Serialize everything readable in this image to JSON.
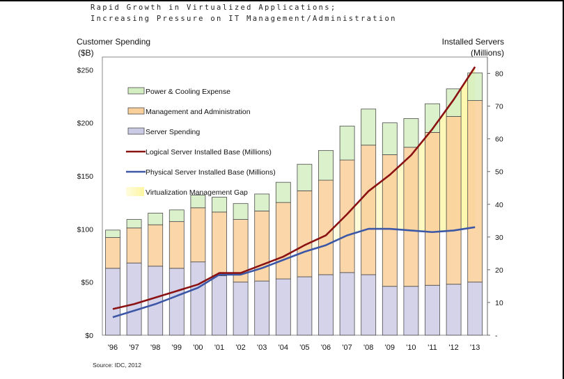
{
  "title": {
    "line1": "Rapid Growth in Virtualized Applications;",
    "line2": "Increasing Pressure on IT Management/Administration"
  },
  "source": "Source: IDC, 2012",
  "colors": {
    "server_spending": "#cccbe6",
    "management": "#f9cf9a",
    "power_cooling": "#d3efc2",
    "logical_line": "#8b1212",
    "physical_line": "#3b57a6",
    "gap": "#fdf6a2",
    "bar_stroke": "#4a4a4a"
  },
  "chart_data": {
    "type": "bar",
    "title": "Rapid Growth in Virtualized Applications; Increasing Pressure on IT Management/Administration",
    "categories": [
      "'96",
      "'97",
      "'98",
      "'99",
      "'00",
      "'01",
      "'02",
      "'03",
      "'04",
      "'05",
      "'06",
      "'07",
      "'08",
      "'09",
      "'10",
      "'11",
      "'12",
      "'13"
    ],
    "left_axis": {
      "label_line1": "Customer Spending",
      "label_line2": "($B)",
      "ylim": [
        0,
        262
      ],
      "ticks": [
        0,
        50,
        100,
        150,
        200,
        250
      ],
      "tick_labels": [
        "$0",
        "$50",
        "$100",
        "$150",
        "$200",
        "$250"
      ]
    },
    "right_axis": {
      "label_line1": "Installed Servers",
      "label_line2": "(Millions)",
      "ylim": [
        0,
        85
      ],
      "ticks": [
        0,
        10,
        20,
        30,
        40,
        50,
        60,
        70,
        80
      ],
      "tick_labels": [
        "-",
        "10",
        "20",
        "30",
        "40",
        "50",
        "60",
        "70",
        "80"
      ]
    },
    "series": [
      {
        "name": "Server Spending",
        "axis": "left",
        "kind": "stacked-bar",
        "values": [
          63,
          68,
          65,
          63,
          69,
          56,
          50,
          51,
          53,
          55,
          57,
          59,
          57,
          46,
          46,
          47,
          48,
          50
        ]
      },
      {
        "name": "Management and Administration",
        "axis": "left",
        "kind": "stacked-bar",
        "values": [
          29,
          33,
          39,
          44,
          51,
          60,
          59,
          66,
          72,
          81,
          89,
          106,
          122,
          124,
          131,
          144,
          158,
          171
        ]
      },
      {
        "name": "Power & Cooling Expense",
        "axis": "left",
        "kind": "stacked-bar",
        "values": [
          7,
          8,
          11,
          11,
          12,
          14,
          15,
          16,
          19,
          25,
          28,
          32,
          34,
          30,
          27,
          27,
          26,
          26
        ]
      },
      {
        "name": "Logical Server Installed Base (Millions)",
        "axis": "right",
        "kind": "line",
        "values": [
          8,
          9.5,
          11.5,
          13.5,
          15.5,
          19,
          19,
          21.5,
          24,
          27.5,
          30.5,
          37,
          44,
          49,
          55,
          63,
          72,
          82
        ]
      },
      {
        "name": "Physical Server Installed Base (Millions)",
        "axis": "right",
        "kind": "line",
        "values": [
          5.5,
          7.5,
          9.5,
          12,
          14.5,
          18.5,
          18.5,
          20.5,
          23,
          25.5,
          27.5,
          30.5,
          32.5,
          32.5,
          32,
          31.5,
          32,
          33
        ]
      },
      {
        "name": "Virtualization Management Gap",
        "axis": "right",
        "kind": "area-between",
        "from_year": "'05"
      }
    ],
    "legend": {
      "placement": "top-left inside plot",
      "entries": [
        {
          "label": "Power & Cooling Expense",
          "kind": "box",
          "color": "#d3efc2"
        },
        {
          "label": "Management and Administration",
          "kind": "box",
          "color": "#f9cf9a"
        },
        {
          "label": "Server Spending",
          "kind": "box",
          "color": "#cccbe6"
        },
        {
          "label": "Logical Server Installed Base (Millions)",
          "kind": "line",
          "color": "#8b1212"
        },
        {
          "label": "Physical Server Installed Base (Millions)",
          "kind": "line",
          "color": "#3b57a6"
        },
        {
          "label": "Virtualization Management Gap",
          "kind": "area",
          "color": "#fdf6a2"
        }
      ]
    },
    "grid": false
  }
}
